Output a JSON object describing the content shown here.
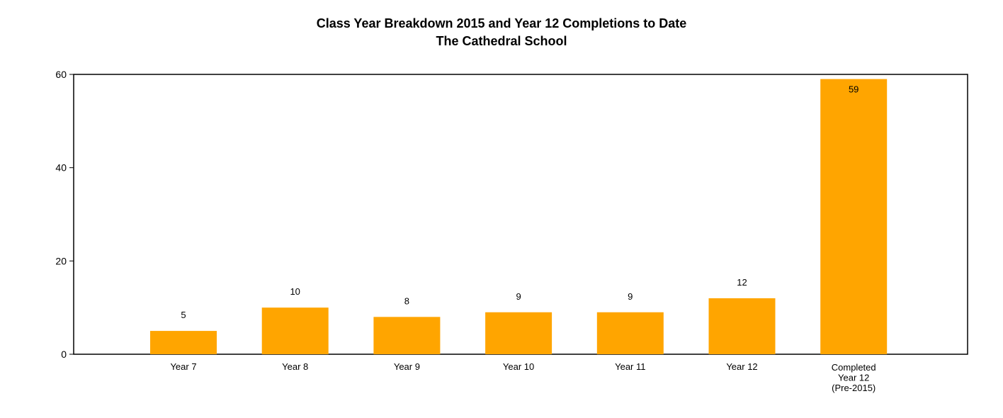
{
  "chart_data": {
    "type": "bar",
    "title": "Class Year Breakdown 2015 and Year 12 Completions to Date",
    "subtitle": "The Cathedral School",
    "xlabel": "",
    "ylabel": "",
    "categories": [
      [
        "Year 7"
      ],
      [
        "Year 8"
      ],
      [
        "Year 9"
      ],
      [
        "Year 10"
      ],
      [
        "Year 11"
      ],
      [
        "Year 12"
      ],
      [
        "Completed",
        "Year 12",
        "(Pre-2015)"
      ]
    ],
    "values": [
      5,
      10,
      8,
      9,
      9,
      12,
      59
    ],
    "data_labels": [
      "5",
      "10",
      "8",
      "9",
      "9",
      "12",
      "59"
    ],
    "ylim": [
      0,
      60
    ],
    "yticks": [
      0,
      20,
      40,
      60
    ],
    "ytick_labels": [
      "0",
      "20",
      "40",
      "60"
    ],
    "grid": false,
    "legend": "none",
    "bar_color": "#FFA500"
  }
}
